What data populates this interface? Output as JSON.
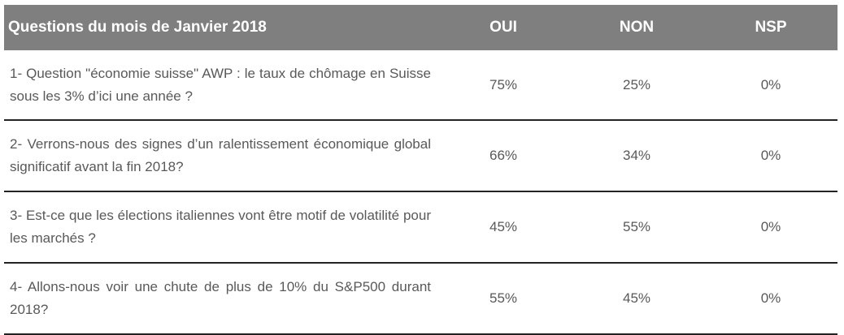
{
  "table": {
    "headers": {
      "question": "Questions du mois de Janvier 2018",
      "oui": "OUI",
      "non": "NON",
      "nsp": "NSP"
    },
    "rows": [
      {
        "question": "1- Question \"économie suisse\" AWP : le taux de chômage en Suisse sous les 3% d’ici une année ?",
        "oui": "75%",
        "non": "25%",
        "nsp": "0%"
      },
      {
        "question": "2- Verrons-nous des signes d’un ralentissement économique global significatif avant la fin 2018?",
        "oui": "66%",
        "non": "34%",
        "nsp": "0%"
      },
      {
        "question": "3- Est-ce que les élections italiennes vont être motif de volatilité pour les marchés ?",
        "oui": "45%",
        "non": "55%",
        "nsp": "0%"
      },
      {
        "question": "4- Allons-nous voir une chute de plus de 10% du S&P500 durant 2018?",
        "oui": "55%",
        "non": "45%",
        "nsp": "0%"
      }
    ]
  },
  "colors": {
    "header_background": "#7f7f7f",
    "header_text": "#ffffff",
    "body_text": "#595959",
    "row_divider": "#222222"
  }
}
